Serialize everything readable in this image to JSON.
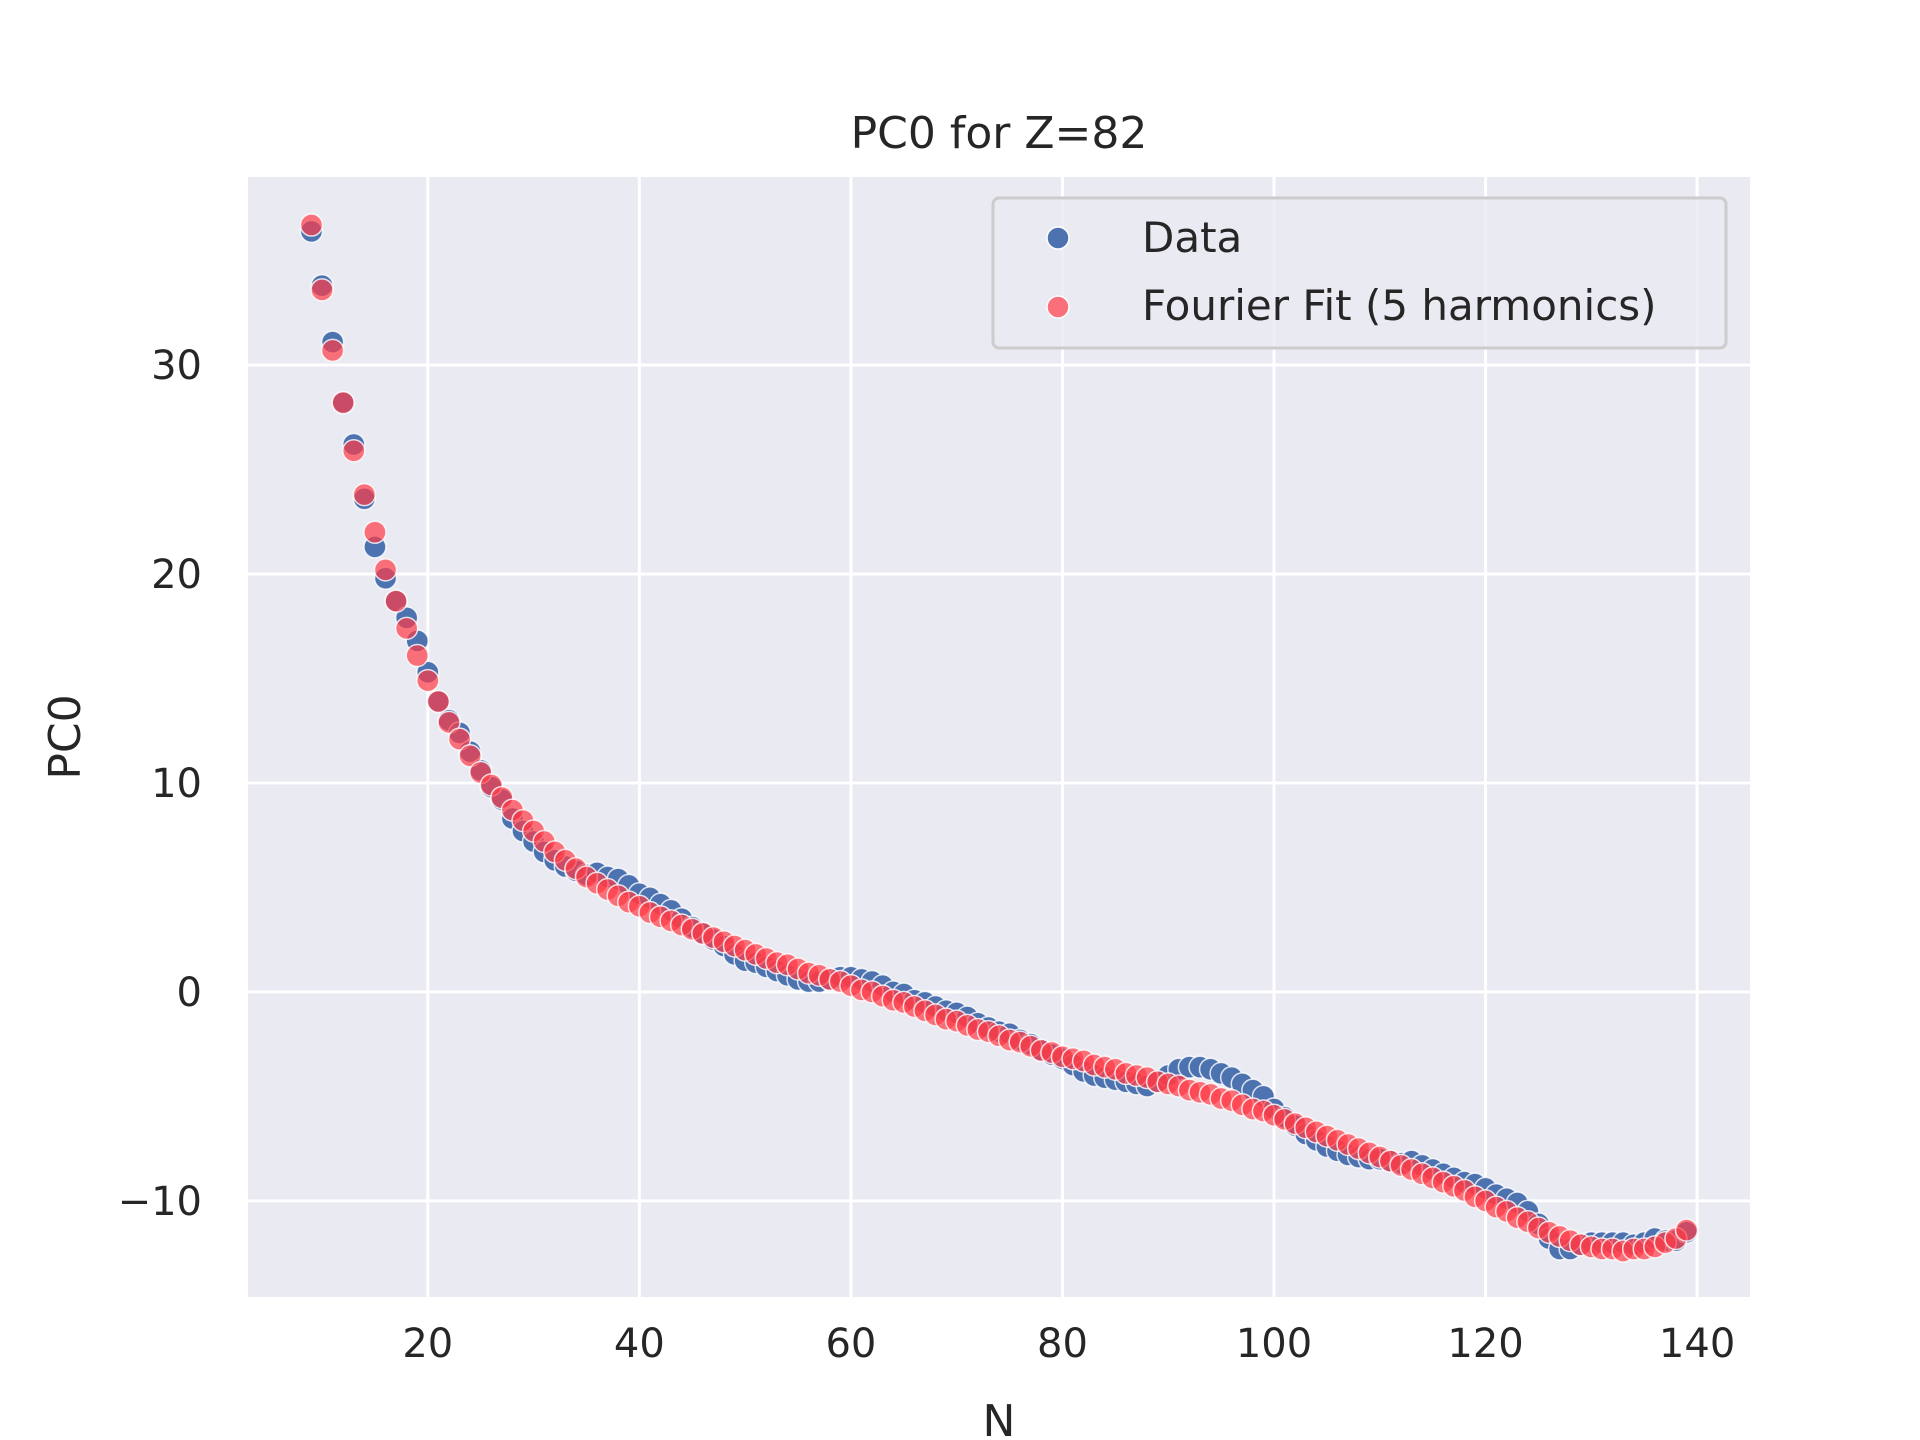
{
  "chart_data": {
    "type": "scatter",
    "title": "PC0 for Z=82",
    "xlabel": "N",
    "ylabel": "PC0",
    "xlim": [
      3,
      145
    ],
    "ylim": [
      -14.6,
      39.0
    ],
    "xticks": [
      20,
      40,
      60,
      80,
      100,
      120,
      140
    ],
    "yticks": [
      -10,
      0,
      10,
      20,
      30
    ],
    "ytick_labels": [
      "−10",
      "0",
      "10",
      "20",
      "30"
    ],
    "grid": true,
    "legend_position": "top-right",
    "colors": {
      "background": "#eaeaf2",
      "grid": "#ffffff",
      "data": "#4c72b0",
      "fit": "#ff3a46"
    },
    "series": [
      {
        "name": "Data",
        "x": [
          9,
          10,
          11,
          12,
          13,
          14,
          15,
          16,
          17,
          18,
          19,
          20,
          21,
          22,
          23,
          24,
          25,
          26,
          27,
          28,
          29,
          30,
          31,
          32,
          33,
          34,
          35,
          36,
          37,
          38,
          39,
          40,
          41,
          42,
          43,
          44,
          45,
          46,
          47,
          48,
          49,
          50,
          51,
          52,
          53,
          54,
          55,
          56,
          57,
          58,
          59,
          60,
          61,
          62,
          63,
          64,
          65,
          66,
          67,
          68,
          69,
          70,
          71,
          72,
          73,
          74,
          75,
          76,
          77,
          78,
          79,
          80,
          81,
          82,
          83,
          84,
          85,
          86,
          87,
          88,
          89,
          90,
          91,
          92,
          93,
          94,
          95,
          96,
          97,
          98,
          99,
          100,
          101,
          102,
          103,
          104,
          105,
          106,
          107,
          108,
          109,
          110,
          111,
          112,
          113,
          114,
          115,
          116,
          117,
          118,
          119,
          120,
          121,
          122,
          123,
          124,
          125,
          126,
          127,
          128,
          129,
          130,
          131,
          132,
          133,
          134,
          135,
          136,
          137,
          138,
          139
        ],
        "y": [
          36.4,
          33.8,
          31.1,
          28.2,
          26.2,
          23.6,
          21.3,
          19.8,
          18.7,
          17.9,
          16.8,
          15.3,
          13.9,
          13.0,
          12.4,
          11.5,
          10.6,
          9.8,
          9.2,
          8.3,
          7.7,
          7.2,
          6.7,
          6.3,
          6.0,
          5.8,
          5.6,
          5.7,
          5.5,
          5.4,
          5.1,
          4.7,
          4.5,
          4.2,
          3.9,
          3.5,
          3.1,
          2.8,
          2.5,
          2.2,
          1.8,
          1.5,
          1.4,
          1.2,
          1.0,
          0.8,
          0.6,
          0.5,
          0.5,
          0.6,
          0.7,
          0.7,
          0.6,
          0.5,
          0.3,
          0.0,
          -0.1,
          -0.4,
          -0.5,
          -0.7,
          -0.9,
          -1.0,
          -1.2,
          -1.5,
          -1.7,
          -1.9,
          -2.0,
          -2.3,
          -2.5,
          -2.8,
          -3.0,
          -3.2,
          -3.5,
          -3.8,
          -4.0,
          -4.1,
          -4.2,
          -4.3,
          -4.4,
          -4.5,
          -4.3,
          -4.0,
          -3.7,
          -3.6,
          -3.6,
          -3.7,
          -3.9,
          -4.1,
          -4.4,
          -4.7,
          -5.0,
          -5.6,
          -6.0,
          -6.4,
          -6.8,
          -7.1,
          -7.4,
          -7.6,
          -7.8,
          -7.9,
          -8.0,
          -8.0,
          -8.1,
          -8.2,
          -8.1,
          -8.3,
          -8.5,
          -8.7,
          -8.9,
          -9.1,
          -9.2,
          -9.4,
          -9.7,
          -9.9,
          -10.1,
          -10.5,
          -11.1,
          -11.8,
          -12.3,
          -12.3,
          -12.1,
          -12.0,
          -12.0,
          -12.0,
          -12.0,
          -12.1,
          -12.0,
          -11.8,
          -11.9,
          -11.9,
          -11.5
        ]
      },
      {
        "name": "Fourier Fit (5 harmonics)",
        "x": [
          9,
          10,
          11,
          12,
          13,
          14,
          15,
          16,
          17,
          18,
          19,
          20,
          21,
          22,
          23,
          24,
          25,
          26,
          27,
          28,
          29,
          30,
          31,
          32,
          33,
          34,
          35,
          36,
          37,
          38,
          39,
          40,
          41,
          42,
          43,
          44,
          45,
          46,
          47,
          48,
          49,
          50,
          51,
          52,
          53,
          54,
          55,
          56,
          57,
          58,
          59,
          60,
          61,
          62,
          63,
          64,
          65,
          66,
          67,
          68,
          69,
          70,
          71,
          72,
          73,
          74,
          75,
          76,
          77,
          78,
          79,
          80,
          81,
          82,
          83,
          84,
          85,
          86,
          87,
          88,
          89,
          90,
          91,
          92,
          93,
          94,
          95,
          96,
          97,
          98,
          99,
          100,
          101,
          102,
          103,
          104,
          105,
          106,
          107,
          108,
          109,
          110,
          111,
          112,
          113,
          114,
          115,
          116,
          117,
          118,
          119,
          120,
          121,
          122,
          123,
          124,
          125,
          126,
          127,
          128,
          129,
          130,
          131,
          132,
          133,
          134,
          135,
          136,
          137,
          138,
          139
        ],
        "y": [
          36.7,
          33.6,
          30.7,
          28.2,
          25.9,
          23.8,
          22.0,
          20.2,
          18.7,
          17.4,
          16.1,
          14.9,
          13.9,
          12.9,
          12.1,
          11.3,
          10.5,
          9.9,
          9.3,
          8.7,
          8.2,
          7.7,
          7.2,
          6.7,
          6.3,
          5.9,
          5.5,
          5.2,
          4.9,
          4.6,
          4.3,
          4.1,
          3.8,
          3.6,
          3.4,
          3.2,
          3.0,
          2.8,
          2.6,
          2.4,
          2.2,
          2.0,
          1.8,
          1.6,
          1.4,
          1.3,
          1.1,
          0.9,
          0.8,
          0.6,
          0.5,
          0.3,
          0.1,
          0.0,
          -0.2,
          -0.4,
          -0.5,
          -0.7,
          -0.9,
          -1.1,
          -1.3,
          -1.4,
          -1.6,
          -1.8,
          -1.9,
          -2.1,
          -2.3,
          -2.4,
          -2.6,
          -2.8,
          -2.9,
          -3.1,
          -3.2,
          -3.3,
          -3.5,
          -3.6,
          -3.7,
          -3.9,
          -4.0,
          -4.1,
          -4.3,
          -4.4,
          -4.5,
          -4.7,
          -4.8,
          -4.9,
          -5.1,
          -5.2,
          -5.4,
          -5.6,
          -5.7,
          -5.9,
          -6.1,
          -6.3,
          -6.5,
          -6.7,
          -6.9,
          -7.1,
          -7.3,
          -7.5,
          -7.7,
          -7.9,
          -8.1,
          -8.3,
          -8.5,
          -8.7,
          -8.9,
          -9.1,
          -9.3,
          -9.5,
          -9.8,
          -10.0,
          -10.3,
          -10.5,
          -10.8,
          -11.0,
          -11.3,
          -11.5,
          -11.7,
          -11.9,
          -12.1,
          -12.2,
          -12.3,
          -12.3,
          -12.4,
          -12.3,
          -12.3,
          -12.2,
          -12.0,
          -11.8,
          -11.4
        ]
      }
    ]
  }
}
